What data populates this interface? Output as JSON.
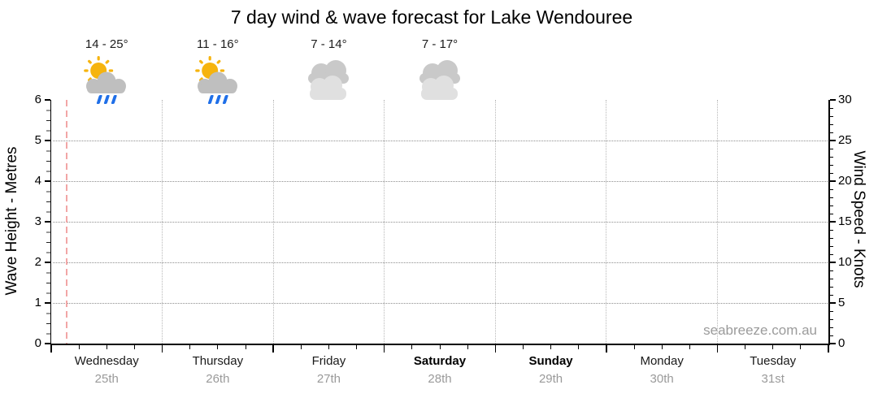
{
  "title": "7 day wind & wave forecast for Lake Wendouree",
  "watermark": "seabreeze.com.au",
  "left_axis": {
    "label": "Wave Height - Metres",
    "ticks": [
      0,
      1,
      2,
      3,
      4,
      5,
      6
    ]
  },
  "right_axis": {
    "label": "Wind Speed - Knots",
    "ticks": [
      0,
      5,
      10,
      15,
      20,
      25,
      30
    ]
  },
  "days": [
    {
      "name": "Wednesday",
      "date": "25th",
      "weekend": false,
      "temp": "14 - 25°",
      "condition": "sun-cloud-rain"
    },
    {
      "name": "Thursday",
      "date": "26th",
      "weekend": false,
      "temp": "11 - 16°",
      "condition": "sun-cloud-rain"
    },
    {
      "name": "Friday",
      "date": "27th",
      "weekend": false,
      "temp": "7 - 14°",
      "condition": "cloudy"
    },
    {
      "name": "Saturday",
      "date": "28th",
      "weekend": true,
      "temp": "7 - 17°",
      "condition": "cloudy"
    },
    {
      "name": "Sunday",
      "date": "29th",
      "weekend": true,
      "temp": null,
      "condition": null
    },
    {
      "name": "Monday",
      "date": "30th",
      "weekend": false,
      "temp": null,
      "condition": null
    },
    {
      "name": "Tuesday",
      "date": "31st",
      "weekend": false,
      "temp": null,
      "condition": null
    }
  ],
  "colors": {
    "sun": "#F6B40E",
    "rain_cloud": "#BFBFBF",
    "cloud_back": "#C9C9C9",
    "cloud_front": "#E0E0E0",
    "rain": "#1F6FE8",
    "time_marker": "#F2A6A6",
    "grid_horizontal": "#8E8E8E",
    "grid_vertical": "#B8B8B8",
    "minor_tick_gray": "#9A9A9A",
    "axis": "#000000",
    "date_text": "#9A9A9A",
    "watermark_text": "#9B9B9B"
  },
  "chart_data": {
    "type": "line",
    "title": "7 day wind & wave forecast for Lake Wendouree",
    "x_categories": [
      "Wednesday 25th",
      "Thursday 26th",
      "Friday 27th",
      "Saturday 28th",
      "Sunday 29th",
      "Monday 30th",
      "Tuesday 31st"
    ],
    "series": [],
    "y_left": {
      "label": "Wave Height - Metres",
      "range": [
        0,
        6
      ],
      "ticks": [
        0,
        1,
        2,
        3,
        4,
        5,
        6
      ]
    },
    "y_right": {
      "label": "Wind Speed - Knots",
      "range": [
        0,
        30
      ],
      "ticks": [
        0,
        5,
        10,
        15,
        20,
        25,
        30
      ]
    },
    "legend": "none",
    "grid": {
      "horizontal_dotted_at_metres": [
        1,
        2,
        3,
        4,
        5
      ],
      "vertical_dotted_at_day_boundaries": true
    },
    "annotations": {
      "current_time_marker": {
        "style": "dashed vertical line",
        "day": "Wednesday",
        "position_fraction_of_day": 0.14
      },
      "daily_forecast": [
        {
          "day": "Wednesday",
          "temp_range": "14 - 25°",
          "condition": "sun-cloud-rain"
        },
        {
          "day": "Thursday",
          "temp_range": "11 - 16°",
          "condition": "sun-cloud-rain"
        },
        {
          "day": "Friday",
          "temp_range": "7 - 14°",
          "condition": "cloudy"
        },
        {
          "day": "Saturday",
          "temp_range": "7 - 17°",
          "condition": "cloudy"
        }
      ]
    }
  }
}
